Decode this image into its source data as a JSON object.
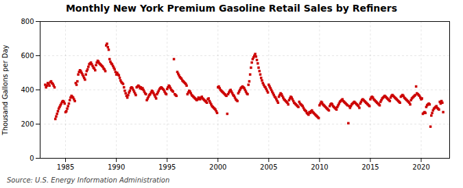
{
  "chart_data": {
    "type": "scatter",
    "title": "Monthly New York Premium Gasoline Retail Sales by Refiners",
    "ylabel": "Thousand Gallons per Day",
    "annotation": "Source: U.S. Energy Information Administration",
    "color": "#cc0000",
    "marker": "square",
    "grid": true,
    "xlim": [
      1982.5,
      2022.8
    ],
    "xticks": [
      1985,
      1990,
      1995,
      2000,
      2005,
      2010,
      2015,
      2020
    ],
    "ylim": [
      0,
      800
    ],
    "yticks": [
      0,
      200,
      400,
      600,
      800
    ],
    "x": [
      1983.0,
      1983.083,
      1983.167,
      1983.25,
      1983.333,
      1983.417,
      1983.5,
      1983.583,
      1983.667,
      1983.75,
      1983.833,
      1983.917,
      1984.0,
      1984.083,
      1984.167,
      1984.25,
      1984.333,
      1984.417,
      1984.5,
      1984.583,
      1984.667,
      1984.75,
      1984.833,
      1984.917,
      1985.0,
      1985.083,
      1985.167,
      1985.25,
      1985.333,
      1985.417,
      1985.5,
      1985.583,
      1985.667,
      1985.75,
      1985.833,
      1985.917,
      1986.0,
      1986.083,
      1986.167,
      1986.25,
      1986.333,
      1986.417,
      1986.5,
      1986.583,
      1986.667,
      1986.75,
      1986.833,
      1986.917,
      1987.0,
      1987.083,
      1987.167,
      1987.25,
      1987.333,
      1987.417,
      1987.5,
      1987.583,
      1987.667,
      1987.75,
      1987.833,
      1987.917,
      1988.0,
      1988.083,
      1988.167,
      1988.25,
      1988.333,
      1988.417,
      1988.5,
      1988.583,
      1988.667,
      1988.75,
      1988.833,
      1988.917,
      1989.0,
      1989.083,
      1989.167,
      1989.25,
      1989.333,
      1989.417,
      1989.5,
      1989.583,
      1989.667,
      1989.75,
      1989.833,
      1989.917,
      1990.0,
      1990.083,
      1990.167,
      1990.25,
      1990.333,
      1990.417,
      1990.5,
      1990.583,
      1990.667,
      1990.75,
      1990.833,
      1990.917,
      1991.0,
      1991.083,
      1991.167,
      1991.25,
      1991.333,
      1991.417,
      1991.5,
      1991.583,
      1991.667,
      1991.75,
      1991.833,
      1991.917,
      1992.0,
      1992.083,
      1992.167,
      1992.25,
      1992.333,
      1992.417,
      1992.5,
      1992.583,
      1992.667,
      1992.75,
      1992.833,
      1992.917,
      1993.0,
      1993.083,
      1993.167,
      1993.25,
      1993.333,
      1993.417,
      1993.5,
      1993.583,
      1993.667,
      1993.75,
      1993.833,
      1993.917,
      1994.0,
      1994.083,
      1994.167,
      1994.25,
      1994.333,
      1994.417,
      1994.5,
      1994.583,
      1994.667,
      1994.75,
      1994.833,
      1994.917,
      1995.0,
      1995.083,
      1995.167,
      1995.25,
      1995.333,
      1995.417,
      1995.5,
      1995.583,
      1995.667,
      1995.75,
      1995.833,
      1995.917,
      1996.0,
      1996.083,
      1996.167,
      1996.25,
      1996.333,
      1996.417,
      1996.5,
      1996.583,
      1996.667,
      1996.75,
      1996.833,
      1996.917,
      1997.0,
      1997.083,
      1997.167,
      1997.25,
      1997.333,
      1997.417,
      1997.5,
      1997.583,
      1997.667,
      1997.75,
      1997.833,
      1997.917,
      1998.0,
      1998.083,
      1998.167,
      1998.25,
      1998.333,
      1998.417,
      1998.5,
      1998.583,
      1998.667,
      1998.75,
      1998.833,
      1998.917,
      1999.0,
      1999.083,
      1999.167,
      1999.25,
      1999.333,
      1999.417,
      1999.5,
      1999.583,
      1999.667,
      1999.75,
      1999.833,
      1999.917,
      2000.0,
      2000.083,
      2000.167,
      2000.25,
      2000.333,
      2000.417,
      2000.5,
      2000.583,
      2000.667,
      2000.75,
      2000.833,
      2000.917,
      2001.0,
      2001.083,
      2001.167,
      2001.25,
      2001.333,
      2001.417,
      2001.5,
      2001.583,
      2001.667,
      2001.75,
      2001.833,
      2001.917,
      2002.0,
      2002.083,
      2002.167,
      2002.25,
      2002.333,
      2002.417,
      2002.5,
      2002.583,
      2002.667,
      2002.75,
      2002.833,
      2002.917,
      2003.0,
      2003.083,
      2003.167,
      2003.25,
      2003.333,
      2003.417,
      2003.5,
      2003.583,
      2003.667,
      2003.75,
      2003.833,
      2003.917,
      2004.0,
      2004.083,
      2004.167,
      2004.25,
      2004.333,
      2004.417,
      2004.5,
      2004.583,
      2004.667,
      2004.75,
      2004.833,
      2004.917,
      2005.0,
      2005.083,
      2005.167,
      2005.25,
      2005.333,
      2005.417,
      2005.5,
      2005.583,
      2005.667,
      2005.75,
      2005.833,
      2005.917,
      2006.0,
      2006.083,
      2006.167,
      2006.25,
      2006.333,
      2006.417,
      2006.5,
      2006.583,
      2006.667,
      2006.75,
      2006.833,
      2006.917,
      2007.0,
      2007.083,
      2007.167,
      2007.25,
      2007.333,
      2007.417,
      2007.5,
      2007.583,
      2007.667,
      2007.75,
      2007.833,
      2007.917,
      2008.0,
      2008.083,
      2008.167,
      2008.25,
      2008.333,
      2008.417,
      2008.5,
      2008.583,
      2008.667,
      2008.75,
      2008.833,
      2008.917,
      2009.0,
      2009.083,
      2009.167,
      2009.25,
      2009.333,
      2009.417,
      2009.5,
      2009.583,
      2009.667,
      2009.75,
      2009.833,
      2009.917,
      2010.0,
      2010.083,
      2010.167,
      2010.25,
      2010.333,
      2010.417,
      2010.5,
      2010.583,
      2010.667,
      2010.75,
      2010.833,
      2010.917,
      2011.0,
      2011.083,
      2011.167,
      2011.25,
      2011.333,
      2011.417,
      2011.5,
      2011.583,
      2011.667,
      2011.75,
      2011.833,
      2011.917,
      2012.0,
      2012.083,
      2012.167,
      2012.25,
      2012.333,
      2012.417,
      2012.5,
      2012.583,
      2012.667,
      2012.75,
      2012.833,
      2012.917,
      2013.0,
      2013.083,
      2013.167,
      2013.25,
      2013.333,
      2013.417,
      2013.5,
      2013.583,
      2013.667,
      2013.75,
      2013.833,
      2013.917,
      2014.0,
      2014.083,
      2014.167,
      2014.25,
      2014.333,
      2014.417,
      2014.5,
      2014.583,
      2014.667,
      2014.75,
      2014.833,
      2014.917,
      2015.0,
      2015.083,
      2015.167,
      2015.25,
      2015.333,
      2015.417,
      2015.5,
      2015.583,
      2015.667,
      2015.75,
      2015.833,
      2015.917,
      2016.0,
      2016.083,
      2016.167,
      2016.25,
      2016.333,
      2016.417,
      2016.5,
      2016.583,
      2016.667,
      2016.75,
      2016.833,
      2016.917,
      2017.0,
      2017.083,
      2017.167,
      2017.25,
      2017.333,
      2017.417,
      2017.5,
      2017.583,
      2017.667,
      2017.75,
      2017.833,
      2017.917,
      2018.0,
      2018.083,
      2018.167,
      2018.25,
      2018.333,
      2018.417,
      2018.5,
      2018.583,
      2018.667,
      2018.75,
      2018.833,
      2018.917,
      2019.0,
      2019.083,
      2019.167,
      2019.25,
      2019.333,
      2019.417,
      2019.5,
      2019.583,
      2019.667,
      2019.75,
      2019.833,
      2019.917,
      2020.0,
      2020.083,
      2020.167,
      2020.25,
      2020.333,
      2020.417,
      2020.5,
      2020.583,
      2020.667,
      2020.75,
      2020.833,
      2020.917,
      2021.0,
      2021.083,
      2021.167,
      2021.25,
      2021.333,
      2021.417,
      2021.5,
      2021.583,
      2021.667,
      2021.75,
      2021.833,
      2021.917,
      2022.0,
      2022.083,
      2022.167
    ],
    "values": [
      430,
      415,
      425,
      440,
      435,
      425,
      445,
      450,
      440,
      435,
      425,
      415,
      230,
      245,
      260,
      275,
      290,
      300,
      310,
      320,
      330,
      335,
      330,
      320,
      270,
      275,
      290,
      305,
      320,
      340,
      355,
      365,
      360,
      355,
      345,
      335,
      440,
      430,
      450,
      490,
      505,
      515,
      510,
      500,
      490,
      480,
      470,
      460,
      490,
      510,
      520,
      535,
      550,
      555,
      560,
      550,
      540,
      530,
      525,
      515,
      545,
      560,
      570,
      565,
      555,
      550,
      545,
      540,
      535,
      525,
      520,
      510,
      660,
      670,
      650,
      635,
      580,
      565,
      555,
      550,
      540,
      530,
      520,
      505,
      490,
      500,
      490,
      485,
      470,
      455,
      445,
      440,
      435,
      415,
      395,
      380,
      365,
      355,
      370,
      385,
      395,
      410,
      415,
      410,
      400,
      390,
      380,
      370,
      415,
      420,
      425,
      420,
      410,
      415,
      405,
      410,
      400,
      390,
      380,
      375,
      340,
      350,
      360,
      370,
      375,
      385,
      395,
      390,
      380,
      370,
      360,
      350,
      375,
      385,
      395,
      405,
      410,
      415,
      410,
      405,
      400,
      390,
      380,
      375,
      405,
      415,
      425,
      420,
      410,
      400,
      395,
      390,
      580,
      375,
      370,
      365,
      505,
      495,
      485,
      475,
      470,
      465,
      455,
      450,
      445,
      440,
      435,
      425,
      375,
      385,
      395,
      390,
      380,
      370,
      365,
      360,
      355,
      350,
      345,
      340,
      345,
      355,
      350,
      345,
      355,
      360,
      350,
      345,
      340,
      335,
      330,
      325,
      345,
      350,
      335,
      325,
      315,
      305,
      300,
      295,
      290,
      285,
      275,
      265,
      415,
      420,
      410,
      400,
      395,
      390,
      385,
      380,
      375,
      370,
      365,
      260,
      375,
      385,
      395,
      400,
      390,
      380,
      370,
      365,
      355,
      345,
      340,
      335,
      380,
      390,
      400,
      410,
      415,
      420,
      415,
      410,
      400,
      390,
      380,
      375,
      430,
      450,
      490,
      530,
      560,
      580,
      590,
      600,
      610,
      595,
      575,
      555,
      530,
      510,
      490,
      470,
      455,
      440,
      430,
      420,
      415,
      405,
      395,
      385,
      430,
      420,
      410,
      400,
      390,
      380,
      370,
      360,
      355,
      345,
      335,
      325,
      360,
      370,
      380,
      375,
      365,
      355,
      345,
      340,
      335,
      330,
      325,
      315,
      340,
      350,
      360,
      355,
      345,
      335,
      325,
      320,
      315,
      310,
      305,
      300,
      330,
      320,
      315,
      310,
      305,
      295,
      285,
      280,
      275,
      265,
      260,
      255,
      270,
      265,
      275,
      280,
      270,
      265,
      260,
      255,
      250,
      245,
      240,
      235,
      310,
      320,
      330,
      325,
      315,
      310,
      305,
      300,
      295,
      290,
      285,
      280,
      305,
      315,
      320,
      315,
      305,
      300,
      295,
      290,
      285,
      300,
      310,
      320,
      330,
      335,
      340,
      345,
      335,
      330,
      325,
      320,
      315,
      310,
      205,
      305,
      295,
      305,
      315,
      320,
      325,
      330,
      325,
      320,
      315,
      310,
      305,
      295,
      320,
      330,
      340,
      345,
      340,
      335,
      330,
      325,
      320,
      315,
      310,
      305,
      345,
      355,
      360,
      355,
      345,
      340,
      335,
      330,
      325,
      320,
      315,
      310,
      330,
      340,
      350,
      355,
      360,
      365,
      360,
      355,
      350,
      345,
      340,
      335,
      355,
      365,
      370,
      365,
      360,
      355,
      350,
      345,
      340,
      335,
      330,
      325,
      360,
      365,
      370,
      365,
      355,
      350,
      345,
      340,
      335,
      330,
      325,
      315,
      340,
      350,
      355,
      360,
      365,
      370,
      420,
      380,
      375,
      370,
      365,
      355,
      345,
      350,
      260,
      265,
      270,
      265,
      300,
      310,
      315,
      320,
      315,
      185,
      250,
      265,
      280,
      290,
      295,
      300,
      305,
      295,
      290,
      285,
      330,
      320,
      335,
      325,
      270
    ]
  }
}
